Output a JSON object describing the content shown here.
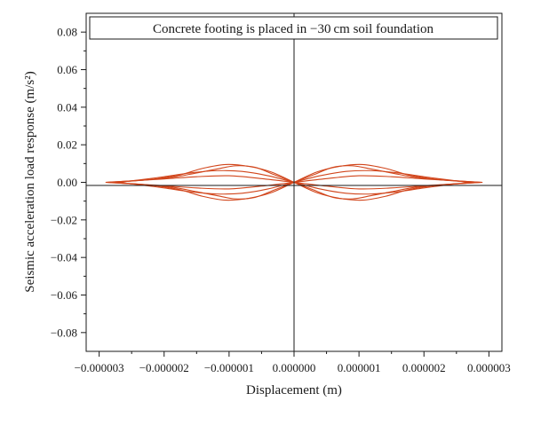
{
  "chart_data": {
    "type": "line",
    "title": "",
    "annotation": "Concrete footing is placed in −30 cm soil foundation",
    "xlabel": "Displacement (m)",
    "ylabel": "Seismic acceleration load response (m/s²)",
    "xlim": [
      -3.2e-06,
      3.2e-06
    ],
    "ylim": [
      -0.09,
      0.09
    ],
    "x_ticks": [
      -3e-06,
      -2e-06,
      -1e-06,
      0,
      1e-06,
      2e-06,
      3e-06
    ],
    "x_tick_labels": [
      "−0.000003",
      "−0.000002",
      "−0.000001",
      "0.000000",
      "0.000001",
      "0.000002",
      "0.000003"
    ],
    "y_ticks": [
      0.08,
      0.06,
      0.04,
      0.02,
      0.0,
      -0.02,
      -0.04,
      -0.06,
      -0.08
    ],
    "y_tick_labels": [
      "0.08",
      "0.06",
      "0.04",
      "0.02",
      "0.00",
      "−0.02",
      "−0.04",
      "−0.06",
      "−0.08"
    ],
    "grid": false,
    "series_color": "#d1451b",
    "series": [
      {
        "x": [
          0,
          3.5e-07,
          7e-07,
          1.05e-06,
          1.4e-06,
          1.75e-06,
          2.1e-06,
          2.45e-06,
          2.8e-06
        ],
        "y": [
          0,
          0.0055,
          0.0085,
          0.0095,
          0.0075,
          0.004,
          0.002,
          0.0008,
          0
        ]
      },
      {
        "x": [
          0,
          3.5e-07,
          7e-07,
          1.05e-06,
          1.4e-06,
          1.75e-06,
          2.1e-06,
          2.45e-06,
          2.8e-06
        ],
        "y": [
          0,
          -0.0055,
          -0.0085,
          -0.0095,
          -0.0075,
          -0.004,
          -0.002,
          -0.0008,
          0
        ]
      },
      {
        "x": [
          0,
          3e-07,
          6e-07,
          9e-07,
          1.2e-06,
          1.5e-06,
          1.8e-06,
          2.1e-06,
          2.4e-06,
          2.7e-06,
          2.9e-06
        ],
        "y": [
          0,
          0.004,
          0.008,
          0.0088,
          0.007,
          0.005,
          0.003,
          0.0018,
          0.001,
          0.0004,
          0
        ]
      },
      {
        "x": [
          0,
          3e-07,
          6e-07,
          9e-07,
          1.2e-06,
          1.5e-06,
          1.8e-06,
          2.1e-06,
          2.4e-06,
          2.7e-06,
          2.9e-06
        ],
        "y": [
          0,
          -0.004,
          -0.008,
          -0.0088,
          -0.007,
          -0.005,
          -0.003,
          -0.0018,
          -0.001,
          -0.0004,
          0
        ]
      },
      {
        "x": [
          0,
          4e-07,
          8e-07,
          1.2e-06,
          1.6e-06,
          2e-06,
          2.4e-06,
          2.7e-06
        ],
        "y": [
          0,
          0.0035,
          0.0058,
          0.0062,
          0.005,
          0.003,
          0.0012,
          0
        ]
      },
      {
        "x": [
          0,
          4e-07,
          8e-07,
          1.2e-06,
          1.6e-06,
          2e-06,
          2.4e-06,
          2.7e-06
        ],
        "y": [
          0,
          -0.0035,
          -0.0058,
          -0.0062,
          -0.005,
          -0.003,
          -0.0012,
          0
        ]
      },
      {
        "x": [
          0,
          5e-07,
          1e-06,
          1.5e-06,
          2e-06,
          2.5e-06,
          2.9e-06
        ],
        "y": [
          0,
          0.002,
          0.0035,
          0.003,
          0.0018,
          0.0008,
          0
        ]
      },
      {
        "x": [
          0,
          5e-07,
          1e-06,
          1.5e-06,
          2e-06,
          2.5e-06,
          2.9e-06
        ],
        "y": [
          0,
          -0.002,
          -0.0035,
          -0.003,
          -0.0018,
          -0.0008,
          0
        ]
      },
      {
        "x": [
          0,
          -3.5e-07,
          -7e-07,
          -1.05e-06,
          -1.4e-06,
          -1.75e-06,
          -2.1e-06,
          -2.45e-06,
          -2.8e-06
        ],
        "y": [
          0,
          0.0055,
          0.0085,
          0.0095,
          0.0075,
          0.004,
          0.002,
          0.0008,
          0
        ]
      },
      {
        "x": [
          0,
          -3.5e-07,
          -7e-07,
          -1.05e-06,
          -1.4e-06,
          -1.75e-06,
          -2.1e-06,
          -2.45e-06,
          -2.8e-06
        ],
        "y": [
          0,
          -0.0055,
          -0.0085,
          -0.0095,
          -0.0075,
          -0.004,
          -0.002,
          -0.0008,
          0
        ]
      },
      {
        "x": [
          0,
          -3e-07,
          -6e-07,
          -9e-07,
          -1.2e-06,
          -1.5e-06,
          -1.8e-06,
          -2.1e-06,
          -2.4e-06,
          -2.7e-06,
          -2.9e-06
        ],
        "y": [
          0,
          0.004,
          0.008,
          0.0088,
          0.007,
          0.005,
          0.003,
          0.0018,
          0.001,
          0.0004,
          0
        ]
      },
      {
        "x": [
          0,
          -3e-07,
          -6e-07,
          -9e-07,
          -1.2e-06,
          -1.5e-06,
          -1.8e-06,
          -2.1e-06,
          -2.4e-06,
          -2.7e-06,
          -2.9e-06
        ],
        "y": [
          0,
          -0.004,
          -0.008,
          -0.0088,
          -0.007,
          -0.005,
          -0.003,
          -0.0018,
          -0.001,
          -0.0004,
          0
        ]
      },
      {
        "x": [
          0,
          -4e-07,
          -8e-07,
          -1.2e-06,
          -1.6e-06,
          -2e-06,
          -2.4e-06,
          -2.7e-06
        ],
        "y": [
          0,
          0.0035,
          0.0058,
          0.0062,
          0.005,
          0.003,
          0.0012,
          0
        ]
      },
      {
        "x": [
          0,
          -4e-07,
          -8e-07,
          -1.2e-06,
          -1.6e-06,
          -2e-06,
          -2.4e-06,
          -2.7e-06
        ],
        "y": [
          0,
          -0.0035,
          -0.0058,
          -0.0062,
          -0.005,
          -0.003,
          -0.0012,
          0
        ]
      },
      {
        "x": [
          0,
          -5e-07,
          -1e-06,
          -1.5e-06,
          -2e-06,
          -2.5e-06,
          -2.9e-06
        ],
        "y": [
          0,
          0.002,
          0.0035,
          0.003,
          0.0018,
          0.0008,
          0
        ]
      },
      {
        "x": [
          0,
          -5e-07,
          -1e-06,
          -1.5e-06,
          -2e-06,
          -2.5e-06,
          -2.9e-06
        ],
        "y": [
          0,
          -0.002,
          -0.0035,
          -0.003,
          -0.0018,
          -0.0008,
          0
        ]
      }
    ]
  }
}
